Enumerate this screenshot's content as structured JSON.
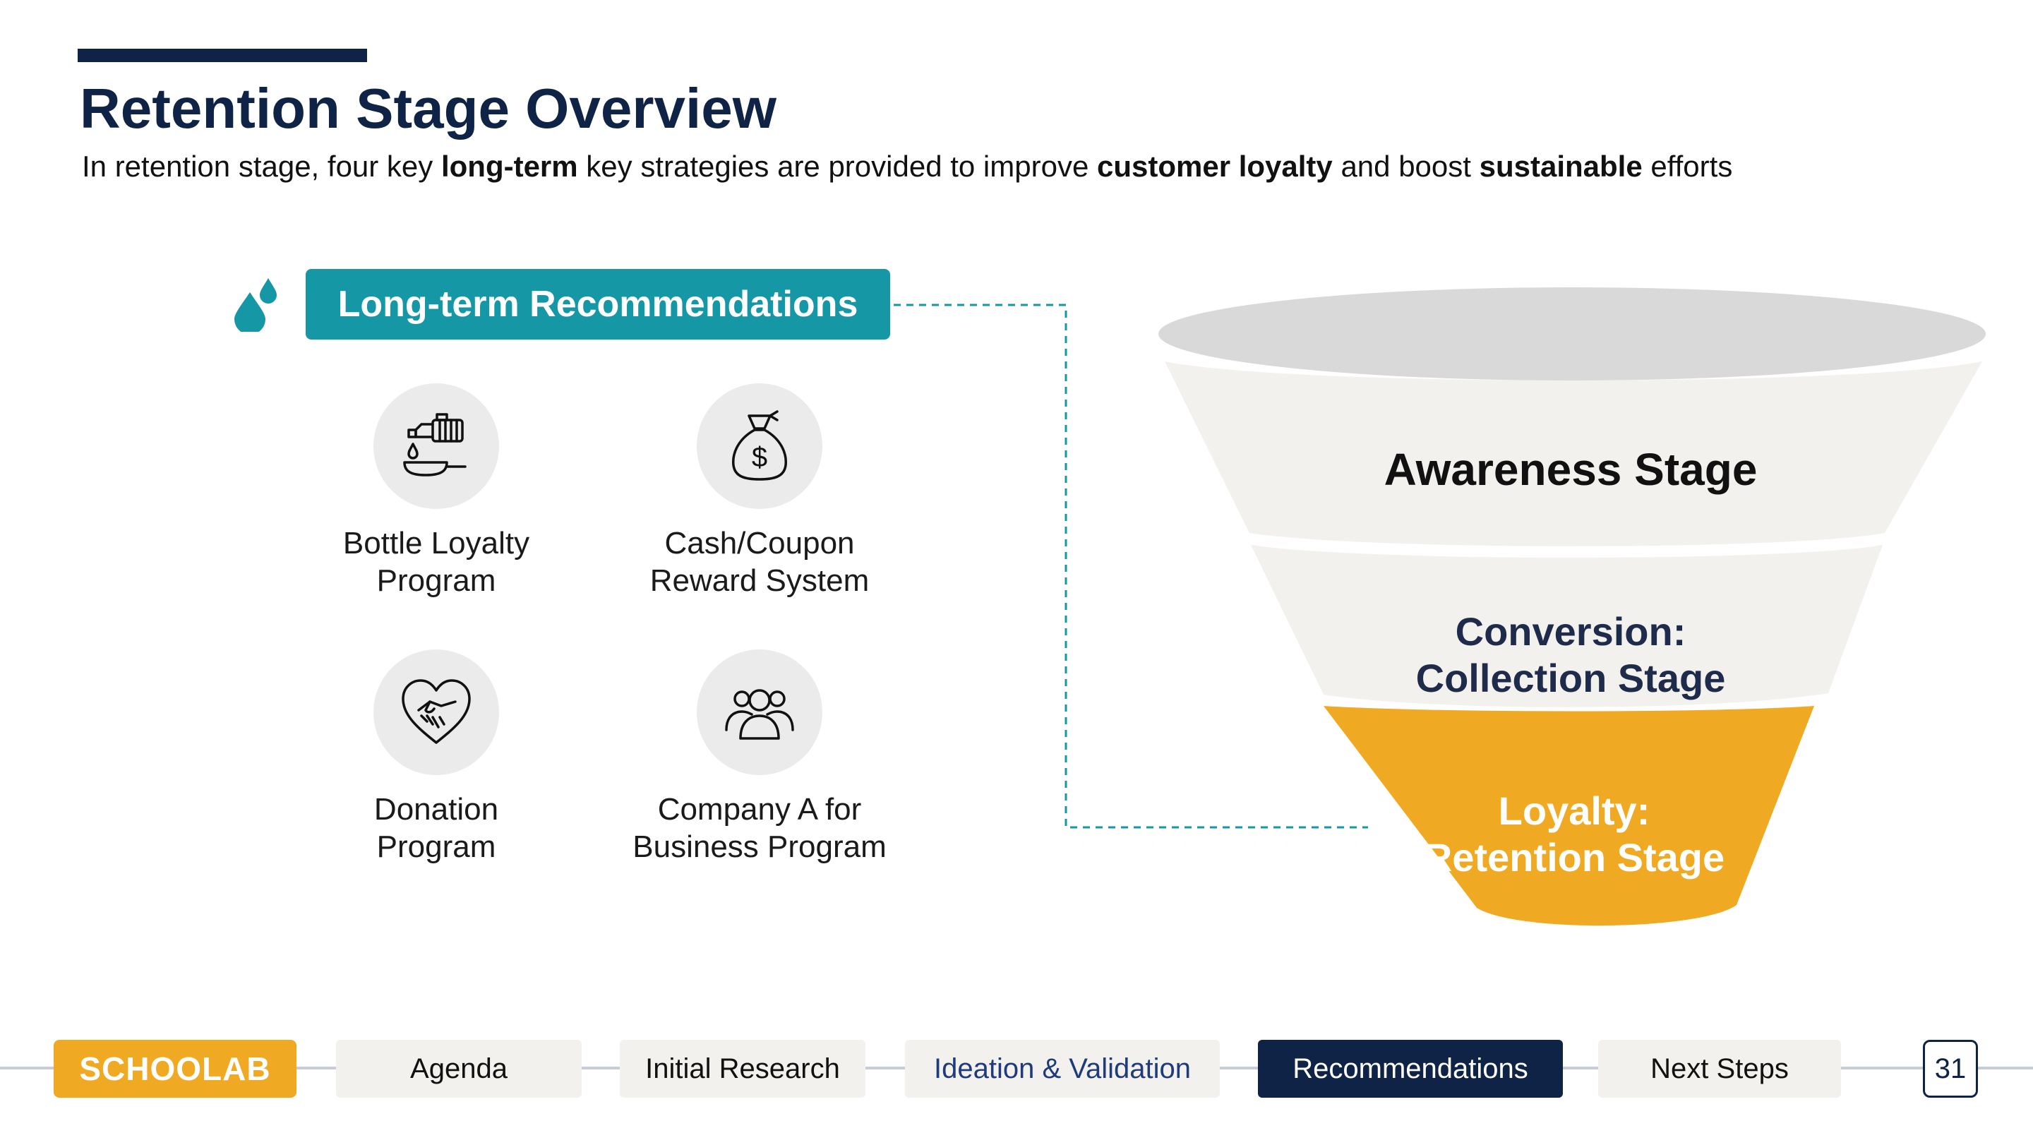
{
  "slide": {
    "title": "Retention Stage Overview",
    "subtitle": {
      "p1": "In retention stage, four key ",
      "b1": "long-term",
      "p2": " key strategies are provided to improve ",
      "b2": "customer loyalty",
      "p3": " and boost ",
      "b3": "sustainable",
      "p4": " efforts"
    }
  },
  "recommendations": {
    "heading": "Long-term Recommendations",
    "items": [
      {
        "line1": "Bottle Loyalty",
        "line2": "Program",
        "icon": "oil-bottle-pan-icon"
      },
      {
        "line1": "Cash/Coupon",
        "line2": "Reward System",
        "icon": "money-bag-icon"
      },
      {
        "line1": "Donation",
        "line2": "Program",
        "icon": "heart-handshake-icon"
      },
      {
        "line1": "Company A for",
        "line2": "Business Program",
        "icon": "people-group-icon"
      }
    ]
  },
  "funnel": {
    "awareness": "Awareness Stage",
    "conversion_1": "Conversion:",
    "conversion_2": "Collection Stage",
    "loyalty_1": "Loyalty:",
    "loyalty_2": "Retention Stage",
    "colors": {
      "top": "#d9d9d9",
      "upper": "#f3f1ed",
      "bottom": "#f0a922",
      "accent": "#1597a6"
    }
  },
  "nav": {
    "logo": "SCHOOLAB",
    "tabs": [
      "Agenda",
      "Initial Research",
      "Ideation & Validation",
      "Recommendations",
      "Next Steps"
    ],
    "active": "Recommendations",
    "page": "31"
  }
}
